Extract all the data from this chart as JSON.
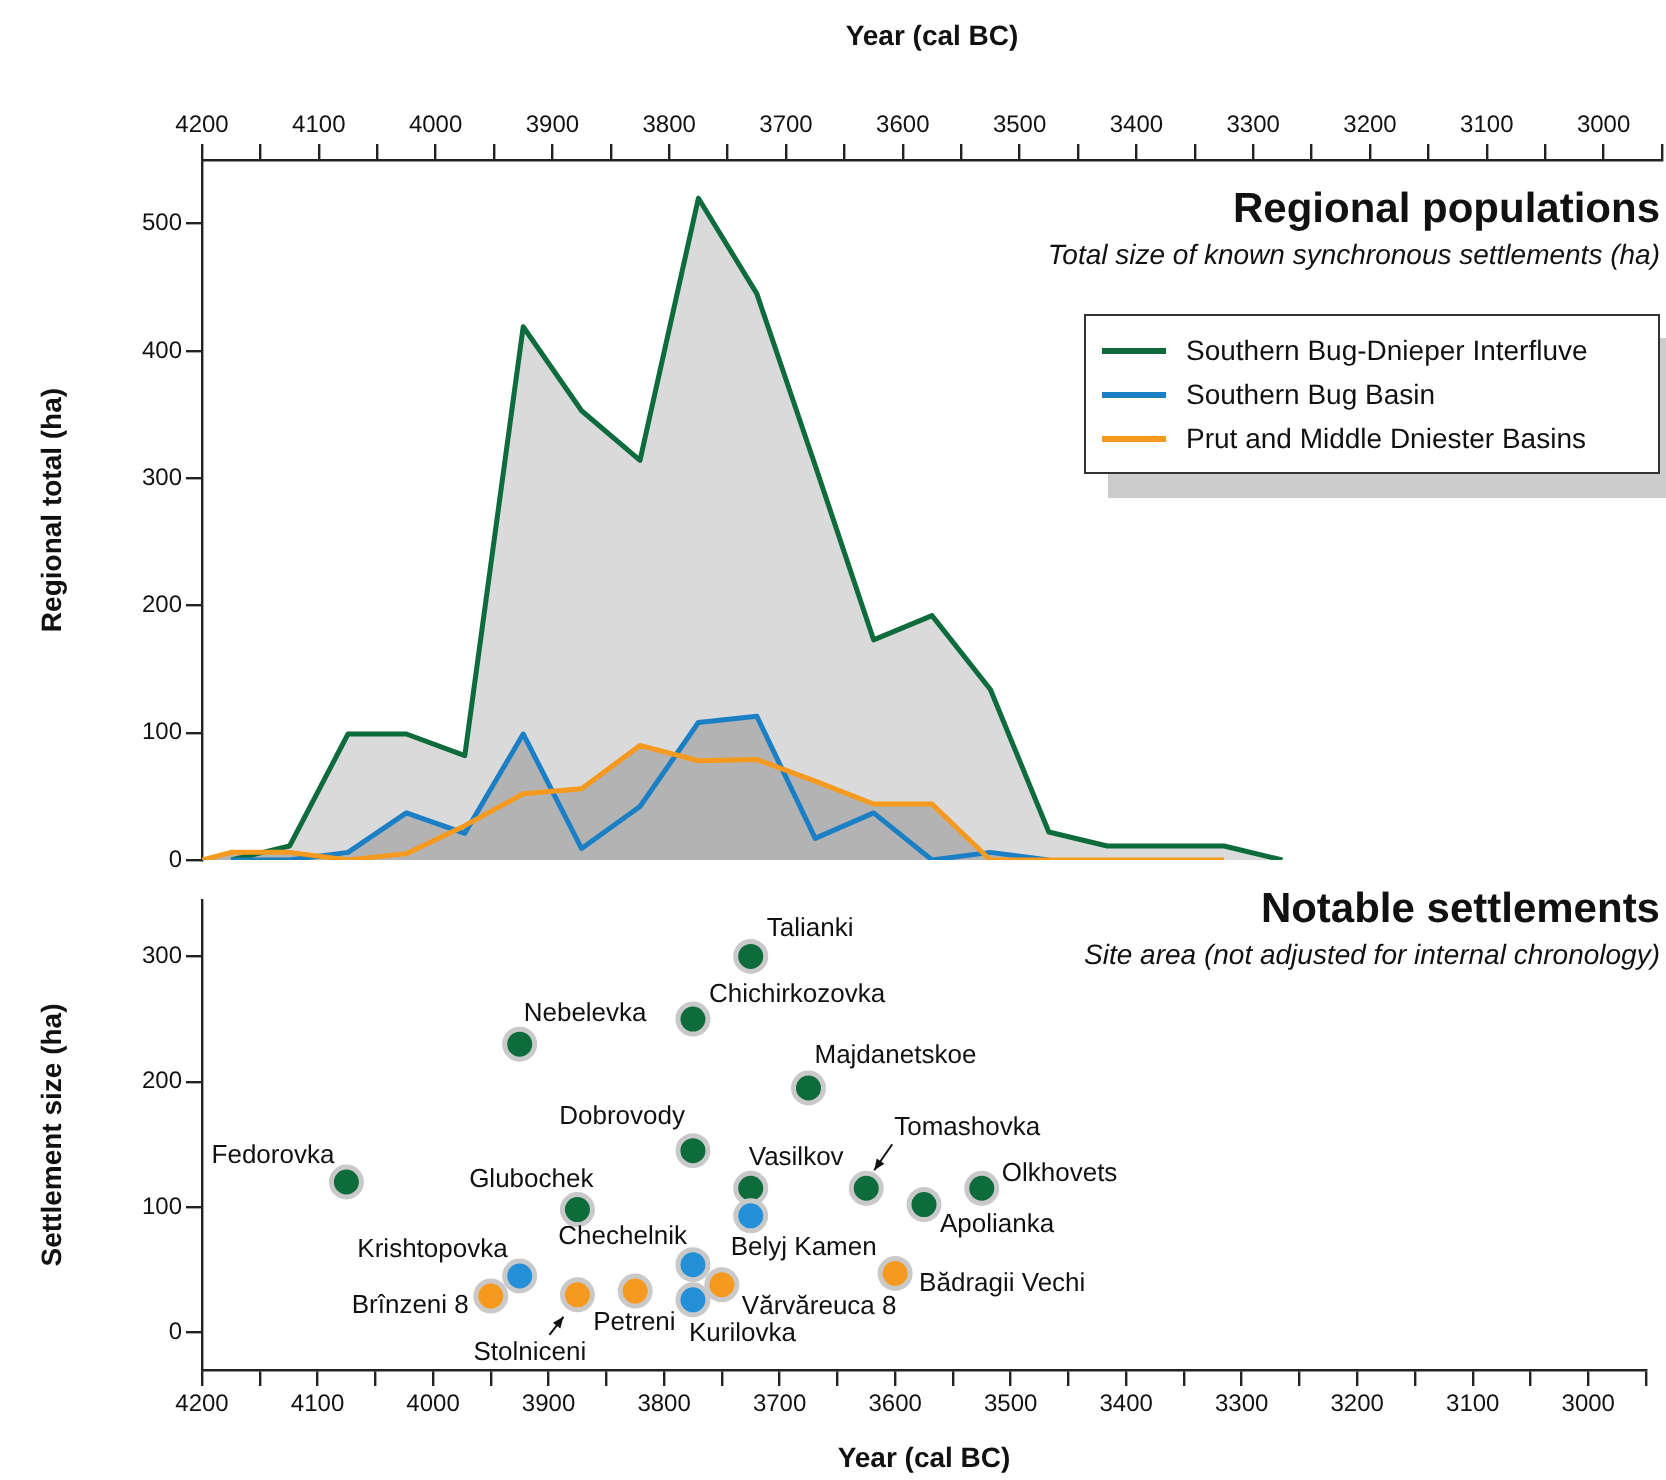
{
  "chart_data": [
    {
      "type": "area",
      "title": "Regional populations",
      "subtitle": "Total size of known synchronous settlements (ha)",
      "ylabel": "Regional total (ha)",
      "xlabel": "Year (cal BC)",
      "xlim": [
        4200,
        2950
      ],
      "xticks": [
        4200,
        {
          "value": 4150,
          "label": null
        },
        4100,
        {
          "value": 4050,
          "label": null
        },
        4000,
        {
          "value": 3950,
          "label": null
        },
        3900,
        {
          "value": 3850,
          "label": null
        },
        3800,
        {
          "value": 3750,
          "label": null
        },
        3700,
        {
          "value": 3650,
          "label": null
        },
        3600,
        {
          "value": 3550,
          "label": null
        },
        3500,
        {
          "value": 3450,
          "label": null
        },
        3400,
        {
          "value": 3350,
          "label": null
        },
        3300,
        {
          "value": 3250,
          "label": null
        },
        3200,
        {
          "value": 3150,
          "label": null
        },
        3100,
        {
          "value": 3050,
          "label": null
        },
        3000,
        {
          "value": 2950,
          "label": null
        }
      ],
      "ylim": [
        0,
        550
      ],
      "yticks": [
        0,
        100,
        200,
        300,
        400,
        500
      ],
      "grid": false,
      "legend": "top right",
      "marker": "none",
      "series": [
        {
          "name": "Southern Bug-Dnieper Interfluve",
          "color": "#0d6b3c",
          "x": [
            4175,
            4125,
            4075,
            4025,
            3975,
            3925,
            3875,
            3825,
            3775,
            3725,
            3675,
            3625,
            3575,
            3525,
            3475,
            3425,
            3375,
            3325,
            3275
          ],
          "values": [
            0,
            11,
            99,
            99,
            82,
            419,
            353,
            314,
            520,
            445,
            310,
            173,
            192,
            134,
            22,
            11,
            11,
            11,
            0
          ]
        },
        {
          "name": "Southern Bug Basin",
          "color": "#1a7fc4",
          "x": [
            4175,
            4125,
            4075,
            4025,
            3975,
            3925,
            3875,
            3825,
            3775,
            3725,
            3675,
            3625,
            3575,
            3525,
            3475
          ],
          "values": [
            0,
            0,
            6,
            37,
            21,
            99,
            9,
            42,
            108,
            113,
            17,
            37,
            0,
            6,
            0
          ]
        },
        {
          "name": "Prut and Middle Dniester Basins",
          "color": "#f59a1e",
          "x": [
            4200,
            4175,
            4125,
            4075,
            4025,
            3975,
            3925,
            3875,
            3825,
            3775,
            3725,
            3675,
            3625,
            3575,
            3525,
            3475,
            3425,
            3375,
            3325
          ],
          "values": [
            0,
            6,
            6,
            0,
            5,
            27,
            52,
            56,
            90,
            78,
            79,
            62,
            44,
            44,
            0,
            0,
            0,
            0,
            0
          ]
        }
      ]
    },
    {
      "type": "scatter",
      "title": "Notable settlements",
      "subtitle": "Site area (not adjusted for internal chronology)",
      "ylabel": "Settlement size (ha)",
      "xlabel": "Year (cal BC)",
      "xlim": [
        4200,
        2950
      ],
      "xticks": [
        4200,
        {
          "value": 4150,
          "label": null
        },
        4100,
        {
          "value": 4050,
          "label": null
        },
        4000,
        {
          "value": 3950,
          "label": null
        },
        3900,
        {
          "value": 3850,
          "label": null
        },
        3800,
        {
          "value": 3750,
          "label": null
        },
        3700,
        {
          "value": 3650,
          "label": null
        },
        3600,
        {
          "value": 3550,
          "label": null
        },
        3500,
        {
          "value": 3450,
          "label": null
        },
        3400,
        {
          "value": 3350,
          "label": null
        },
        3300,
        {
          "value": 3250,
          "label": null
        },
        3200,
        {
          "value": 3150,
          "label": null
        },
        3100,
        {
          "value": 3050,
          "label": null
        },
        3000,
        {
          "value": 2950,
          "label": null
        }
      ],
      "ylim": [
        -30,
        345
      ],
      "yticks": [
        0,
        100,
        200,
        300
      ],
      "grid": false,
      "marker": "circle",
      "series": [
        {
          "color": "#0d6b3c",
          "x": [
            3725,
            3775,
            3925,
            3675,
            3775,
            4075,
            3725,
            3625,
            3525,
            3575,
            3875
          ],
          "values": [
            300,
            250,
            230,
            195,
            145,
            120,
            115,
            115,
            115,
            102,
            98
          ]
        },
        {
          "color": "#2390d8",
          "x": [
            3725,
            3775,
            3925,
            3775
          ],
          "values": [
            93,
            54,
            45,
            26
          ]
        },
        {
          "color": "#f59a1e",
          "x": [
            3950,
            3875,
            3825,
            3750,
            3600
          ],
          "values": [
            29,
            30,
            33,
            38,
            47
          ]
        }
      ],
      "annotations": [
        {
          "text": "Talianki",
          "x": 3725,
          "y": 300
        },
        {
          "text": "Chichirkozovka",
          "x": 3775,
          "y": 250
        },
        {
          "text": "Nebelevka",
          "x": 3925,
          "y": 230
        },
        {
          "text": "Majdanetskoe",
          "x": 3675,
          "y": 195
        },
        {
          "text": "Dobrovody",
          "x": 3775,
          "y": 145
        },
        {
          "text": "Fedorovka",
          "x": 4075,
          "y": 120
        },
        {
          "text": "Vasilkov",
          "x": 3725,
          "y": 115
        },
        {
          "text": "Tomashovka",
          "x": 3625,
          "y": 115
        },
        {
          "text": "Olkhovets",
          "x": 3525,
          "y": 115
        },
        {
          "text": "Apolianka",
          "x": 3575,
          "y": 102
        },
        {
          "text": "Glubochek",
          "x": 3875,
          "y": 98
        },
        {
          "text": "Belyj Kamen",
          "x": 3725,
          "y": 93
        },
        {
          "text": "Chechelnik",
          "x": 3775,
          "y": 54
        },
        {
          "text": "Krishtopovka",
          "x": 3925,
          "y": 45
        },
        {
          "text": "Kurilovka",
          "x": 3775,
          "y": 26
        },
        {
          "text": "Brînzeni 8",
          "x": 3950,
          "y": 29
        },
        {
          "text": "Stolniceni",
          "x": 3875,
          "y": 30
        },
        {
          "text": "Petreni",
          "x": 3825,
          "y": 33
        },
        {
          "text": "Vărvăreuca 8",
          "x": 3750,
          "y": 38
        },
        {
          "text": "Bădragii Vechi",
          "x": 3600,
          "y": 47
        }
      ]
    }
  ]
}
